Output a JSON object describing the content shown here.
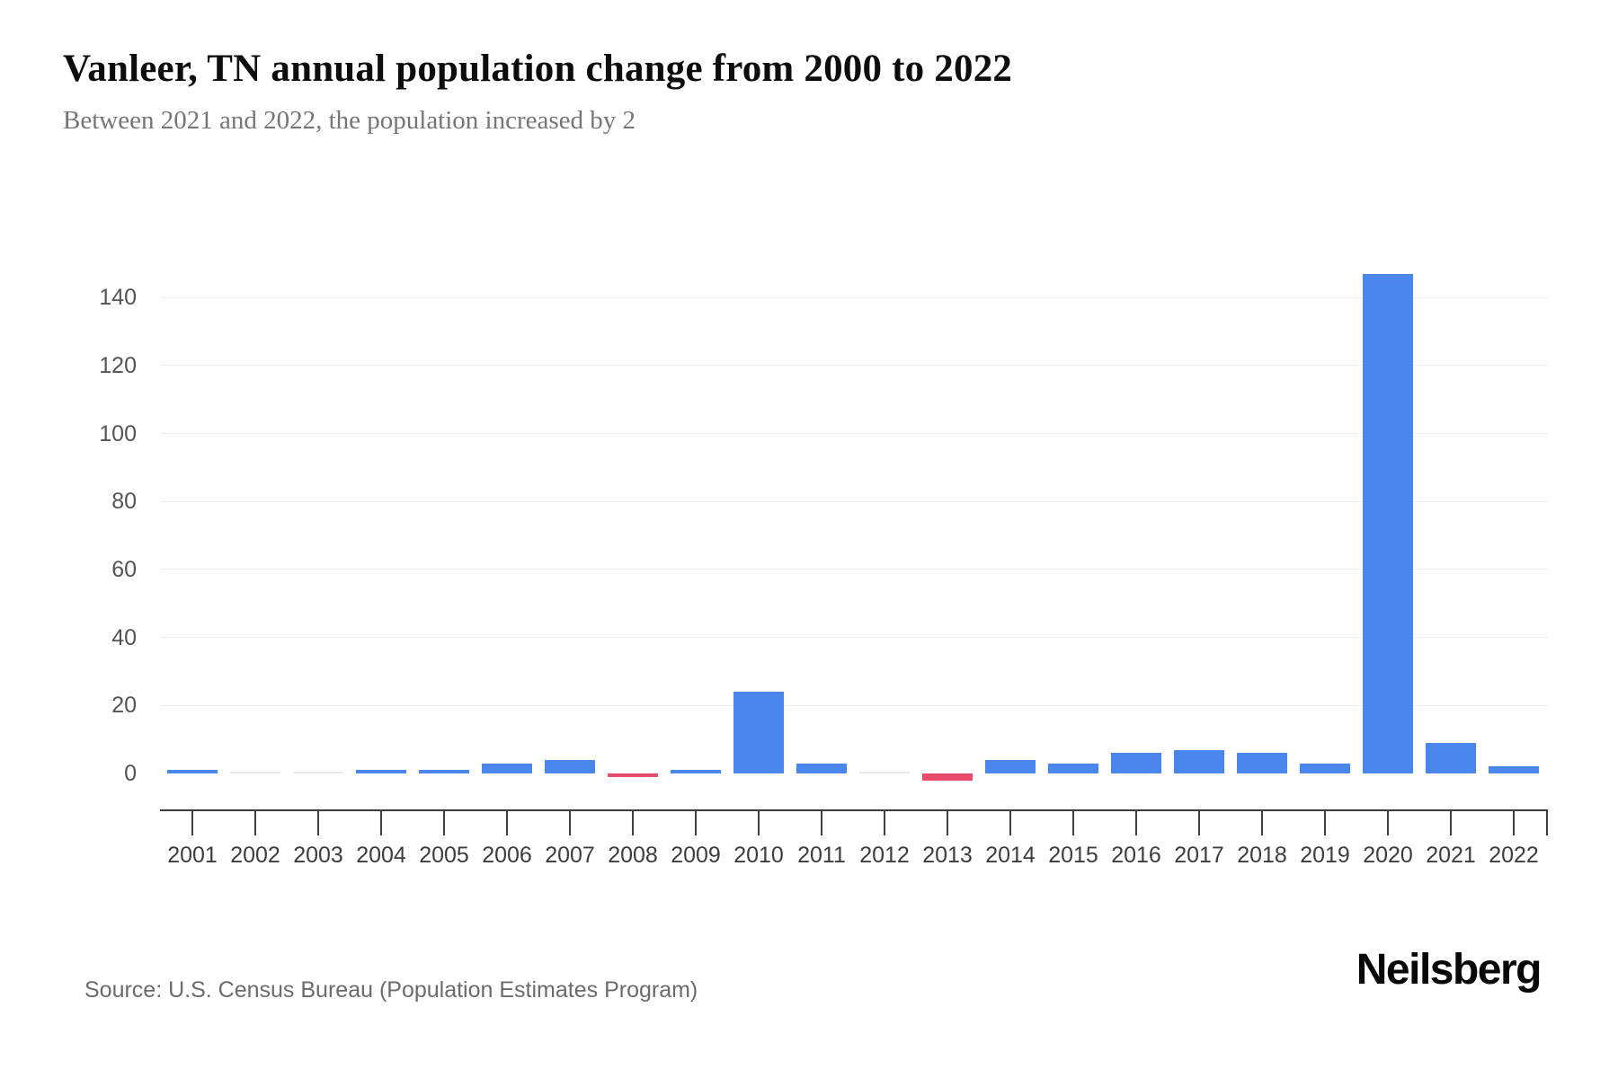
{
  "header": {
    "title": "Vanleer, TN annual population change from 2000 to 2022",
    "subtitle": "Between 2021 and 2022, the population increased by 2"
  },
  "footer": {
    "source": "Source: U.S. Census Bureau (Population Estimates Program)",
    "brand": "Neilsberg"
  },
  "chart_data": {
    "type": "bar",
    "title": "Vanleer, TN annual population change from 2000 to 2022",
    "subtitle": "Between 2021 and 2022, the population increased by 2",
    "series_name": "Annual population change",
    "categories": [
      "2001",
      "2002",
      "2003",
      "2004",
      "2005",
      "2006",
      "2007",
      "2008",
      "2009",
      "2010",
      "2011",
      "2012",
      "2013",
      "2014",
      "2015",
      "2016",
      "2017",
      "2018",
      "2019",
      "2020",
      "2021",
      "2022"
    ],
    "values": [
      1,
      0,
      0,
      1,
      1,
      3,
      4,
      -1,
      1,
      24,
      3,
      0,
      -2,
      4,
      3,
      6,
      7,
      6,
      3,
      147,
      9,
      2
    ],
    "xlabel": "",
    "ylabel": "",
    "ylim": [
      -10,
      150
    ],
    "yticks": [
      0,
      20,
      40,
      60,
      80,
      100,
      120,
      140
    ],
    "grid": true,
    "legend_position": "none",
    "colors": {
      "positive": "#4a86ec",
      "negative": "#ec4c6b",
      "zero": "#e9e9e9",
      "gridline": "#efefef",
      "axis": "#3d3d3d"
    }
  }
}
